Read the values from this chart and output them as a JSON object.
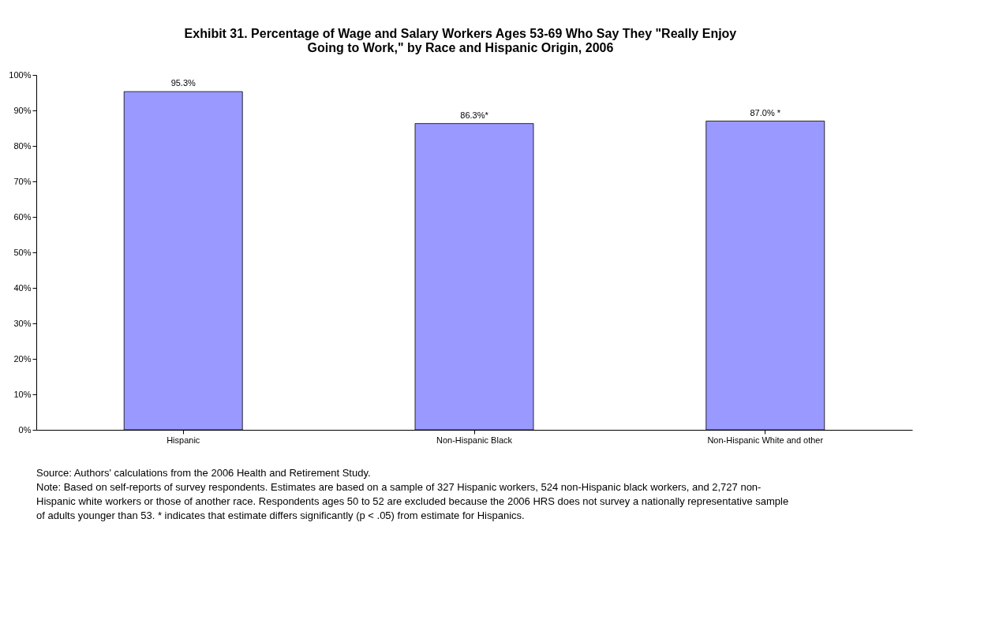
{
  "chart_data": {
    "type": "bar",
    "title": "Exhibit 31. Percentage of Wage and Salary Workers Ages 53-69 Who Say They \"Really Enjoy Going to Work,\" by Race and Hispanic Origin, 2006",
    "categories": [
      "Hispanic",
      "Non-Hispanic Black",
      "Non-Hispanic White and other"
    ],
    "values": [
      95.3,
      86.3,
      87.0
    ],
    "value_labels": [
      "95.3%",
      "86.3%*",
      "87.0% *"
    ],
    "color": "#9999ff",
    "ylim": [
      0,
      100
    ],
    "yticks": [
      {
        "value": 0,
        "label": "0%"
      },
      {
        "value": 10,
        "label": "10%"
      },
      {
        "value": 20,
        "label": "20%"
      },
      {
        "value": 30,
        "label": "30%"
      },
      {
        "value": 40,
        "label": "40%"
      },
      {
        "value": 50,
        "label": "50%"
      },
      {
        "value": 60,
        "label": "60%"
      },
      {
        "value": 70,
        "label": "70%"
      },
      {
        "value": 80,
        "label": "80%"
      },
      {
        "value": 90,
        "label": "90%"
      },
      {
        "value": 100,
        "label": "100%"
      }
    ],
    "grid": false,
    "annotations": [
      "Source: Authors' calculations from the 2006 Health and Retirement Study.",
      "Note: Based on self-reports of survey respondents. Estimates are based on a sample of 327 Hispanic workers, 524 non-Hispanic black workers, and 2,727 non-Hispanic white workers or those of another race. Respondents ages 50 to 52 are excluded because the 2006 HRS does not survey a nationally representative sample of adults younger than 53. * indicates that estimate differs significantly (p < .05) from estimate for Hispanics."
    ]
  }
}
